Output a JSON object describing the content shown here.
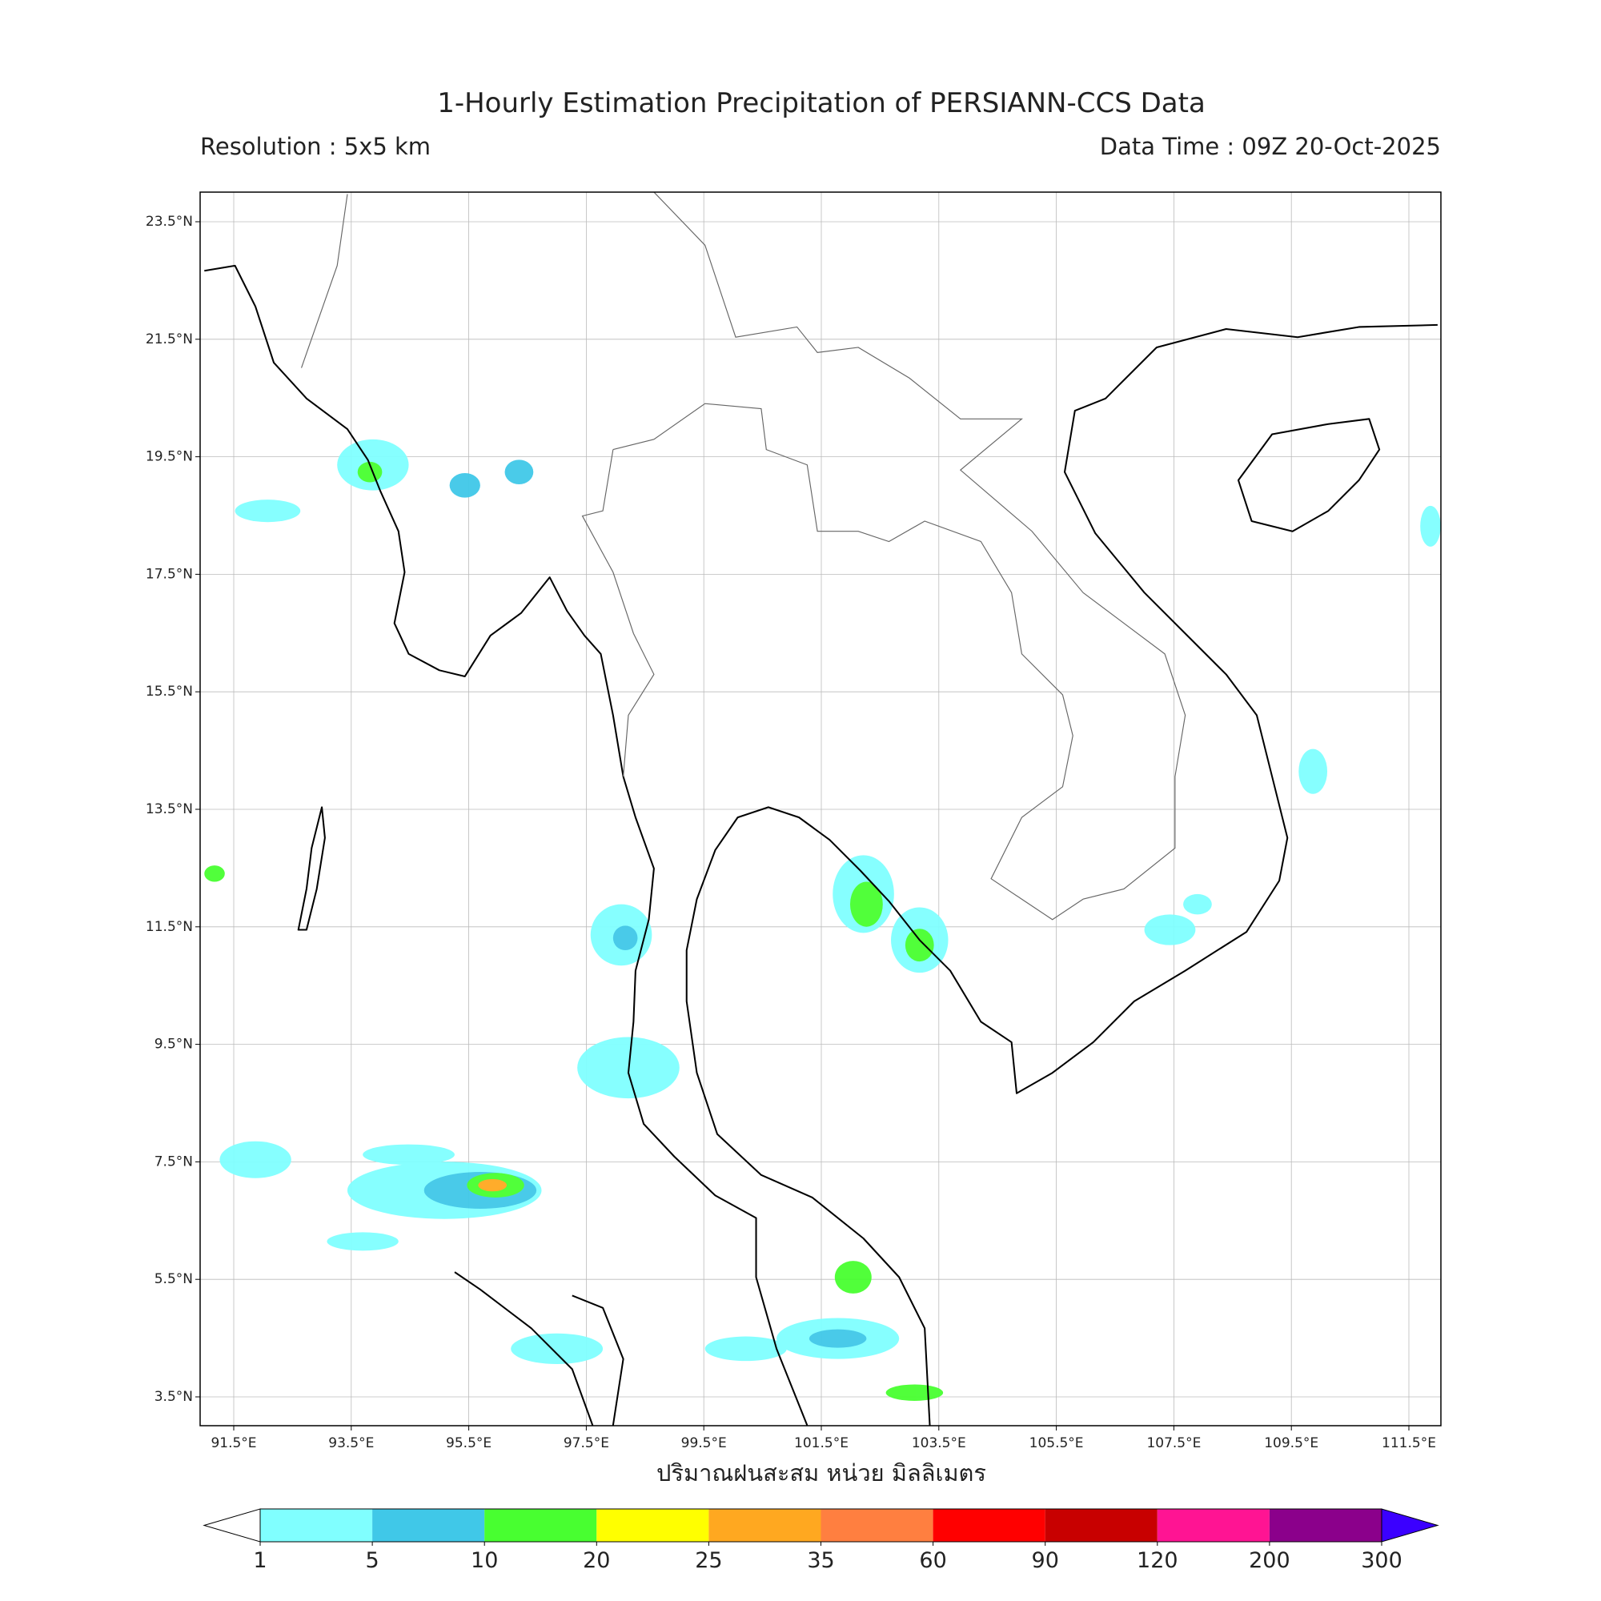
{
  "title": "1-Hourly Estimation Precipitation of PERSIANN-CCS Data",
  "resolution": "Resolution : 5x5 km",
  "data_time": "Data Time : 09Z 20-Oct-2025",
  "map": {
    "lon_ticks": [
      "91.5°E",
      "93.5°E",
      "95.5°E",
      "97.5°E",
      "99.5°E",
      "101.5°E",
      "103.5°E",
      "105.5°E",
      "107.5°E",
      "109.5°E",
      "111.5°E"
    ],
    "lat_ticks": [
      "23.5°N",
      "21.5°N",
      "19.5°N",
      "17.5°N",
      "15.5°N",
      "13.5°N",
      "11.5°N",
      "9.5°N",
      "7.5°N",
      "5.5°N",
      "3.5°N"
    ],
    "xlabel": "ปริมาณฝนสะสม หน่วย มิลลิเมตร"
  },
  "colorbar": {
    "levels": [
      1,
      5,
      10,
      20,
      25,
      35,
      60,
      90,
      120,
      200,
      300
    ],
    "colors": [
      "#80ffff",
      "#40c8e8",
      "#48ff30",
      "#ffff00",
      "#ffa820",
      "#ff7f40",
      "#ff0000",
      "#c80000",
      "#ff1493",
      "#8b008b"
    ],
    "under_color": "#ffffff",
    "over_color": "#3b00ff"
  }
}
